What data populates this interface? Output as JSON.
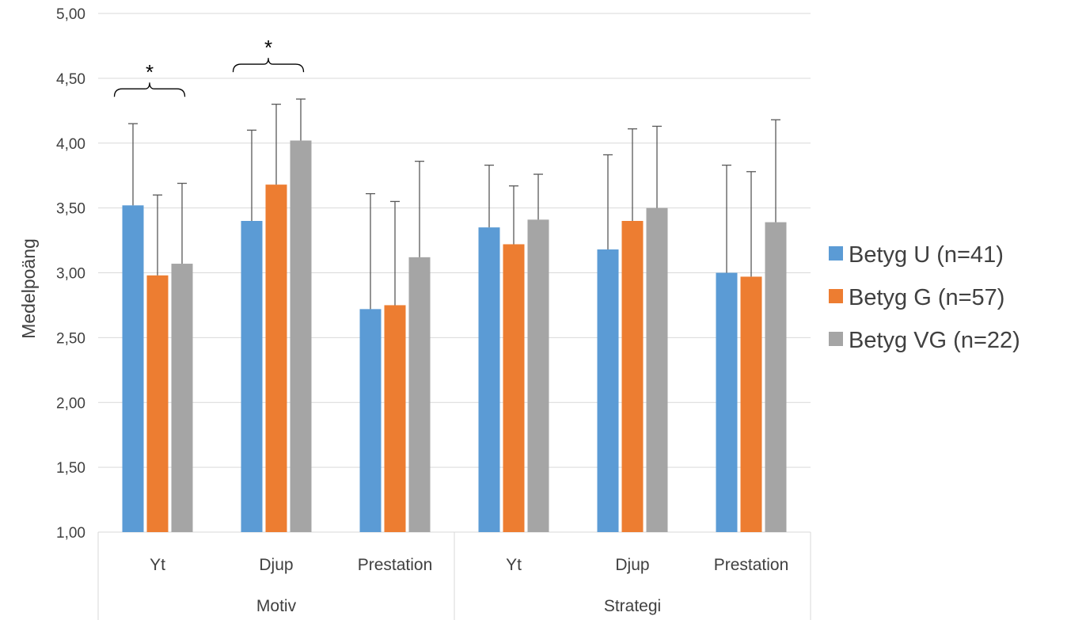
{
  "chart_data": {
    "type": "bar",
    "ylabel": "Medelpoäng",
    "ylim": [
      1.0,
      5.0
    ],
    "ytick_step": 0.5,
    "yticks": [
      "1,00",
      "1,50",
      "2,00",
      "2,50",
      "3,00",
      "3,50",
      "4,00",
      "4,50",
      "5,00"
    ],
    "grid": true,
    "legend_position": "right",
    "groups": [
      {
        "label": "Motiv",
        "categories": [
          "Yt",
          "Djup",
          "Prestation"
        ]
      },
      {
        "label": "Strategi",
        "categories": [
          "Yt",
          "Djup",
          "Prestation"
        ]
      }
    ],
    "categories": [
      "Yt",
      "Djup",
      "Prestation",
      "Yt",
      "Djup",
      "Prestation"
    ],
    "series": [
      {
        "name": "Betyg U (n=41)",
        "color": "#5b9bd5",
        "values": [
          3.52,
          3.4,
          2.72,
          3.35,
          3.18,
          3.0
        ],
        "error_upper": [
          4.15,
          4.1,
          3.61,
          3.83,
          3.91,
          3.83
        ]
      },
      {
        "name": "Betyg G (n=57)",
        "color": "#ed7d31",
        "values": [
          2.98,
          3.68,
          2.75,
          3.22,
          3.4,
          2.97
        ],
        "error_upper": [
          3.6,
          4.3,
          3.55,
          3.67,
          4.11,
          3.78
        ]
      },
      {
        "name": "Betyg VG (n=22)",
        "color": "#a5a5a5",
        "values": [
          3.07,
          4.02,
          3.12,
          3.41,
          3.5,
          3.39
        ],
        "error_upper": [
          3.69,
          4.34,
          3.86,
          3.76,
          4.13,
          4.18
        ]
      }
    ],
    "annotations": [
      {
        "text": "*",
        "category_index": 0,
        "type": "significance-bracket"
      },
      {
        "text": "*",
        "category_index": 1,
        "type": "significance-bracket"
      }
    ]
  }
}
